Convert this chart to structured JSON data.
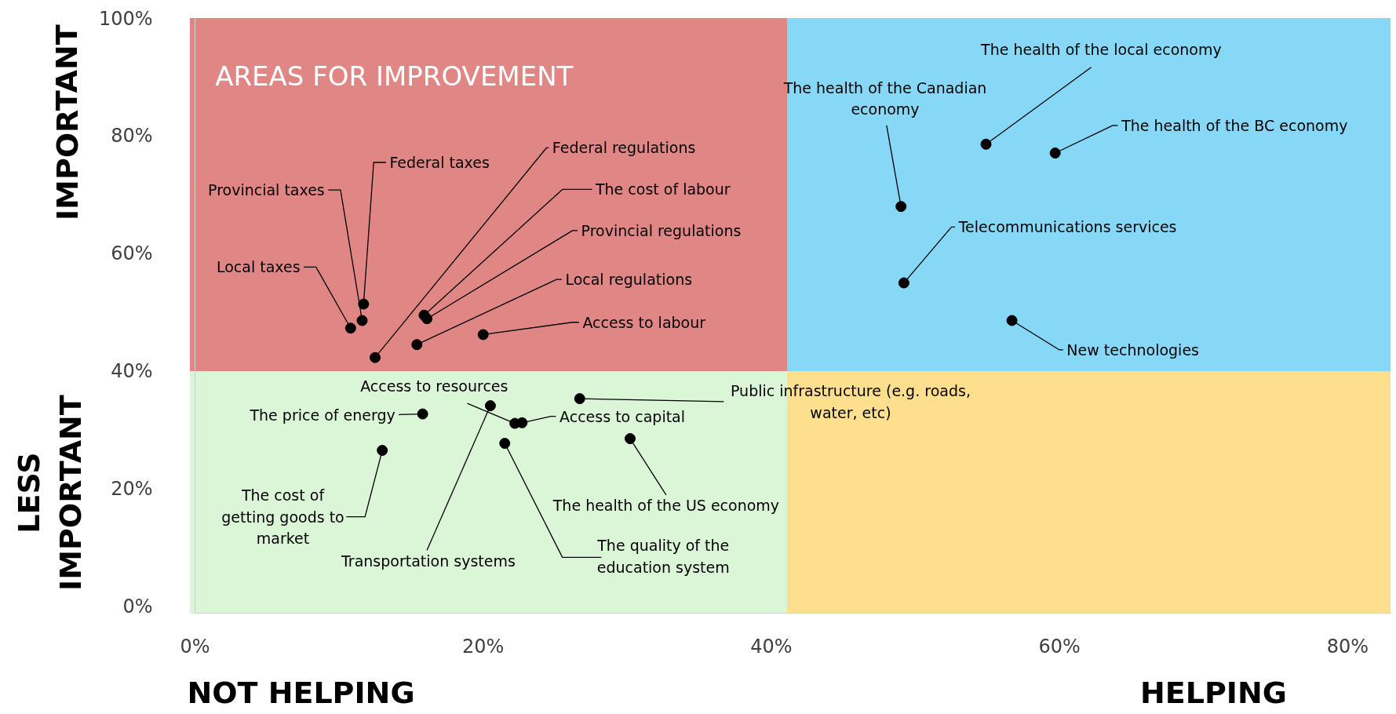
{
  "chart_data": {
    "type": "scatter",
    "marker": "circle",
    "grid": false,
    "xlim": [
      0,
      83
    ],
    "ylim": [
      -1.2,
      100
    ],
    "xticks": [
      {
        "value": 0,
        "label": "0%"
      },
      {
        "value": 20,
        "label": "20%"
      },
      {
        "value": 40,
        "label": "40%"
      },
      {
        "value": 60,
        "label": "60%"
      },
      {
        "value": 80,
        "label": "80%"
      }
    ],
    "yticks": [
      {
        "value": 0,
        "label": "0%"
      },
      {
        "value": 20,
        "label": "20%"
      },
      {
        "value": 40,
        "label": "40%"
      },
      {
        "value": 60,
        "label": "60%"
      },
      {
        "value": 80,
        "label": "80%"
      },
      {
        "value": 100,
        "label": "100%"
      }
    ],
    "series": [
      {
        "color": "#000000",
        "x": [
          10.8,
          11.6,
          11.7,
          12.5,
          15.9,
          16.1,
          15.4,
          20.0,
          49.0,
          54.9,
          59.7,
          49.2,
          56.7,
          22.2,
          15.8,
          22.7,
          26.7,
          13.0,
          20.5,
          21.5,
          30.2
        ],
        "values": [
          47.3,
          48.6,
          51.4,
          42.3,
          49.5,
          48.9,
          44.5,
          46.2,
          68.0,
          78.6,
          77.1,
          55.0,
          48.6,
          31.1,
          32.7,
          31.2,
          35.3,
          26.5,
          34.1,
          27.7,
          28.5
        ]
      }
    ],
    "annotations": [
      "AREAS FOR IMPROVEMENT",
      "IMPORTANT",
      "LESS IMPORTANT",
      "NOT HELPING",
      "HELPING",
      {
        "text": "Local taxes",
        "x": 10.8,
        "y": 47.3
      },
      {
        "text": "Provincial taxes",
        "x": 11.6,
        "y": 48.6
      },
      {
        "text": "Federal taxes",
        "x": 11.7,
        "y": 51.4
      },
      {
        "text": "Federal regulations",
        "x": 12.5,
        "y": 42.3
      },
      {
        "text": "The cost of labour",
        "x": 15.9,
        "y": 49.5
      },
      {
        "text": "Provincial regulations",
        "x": 16.1,
        "y": 48.9
      },
      {
        "text": "Local regulations",
        "x": 15.4,
        "y": 44.5
      },
      {
        "text": "Access to labour",
        "x": 20.0,
        "y": 46.2
      },
      {
        "text": "The health of the Canadian economy",
        "x": 49.0,
        "y": 68.0
      },
      {
        "text": "The health of the local economy",
        "x": 54.9,
        "y": 78.6
      },
      {
        "text": "The health of the BC economy",
        "x": 59.7,
        "y": 77.1
      },
      {
        "text": "Telecommunications services",
        "x": 49.2,
        "y": 55.0
      },
      {
        "text": "New technologies",
        "x": 56.7,
        "y": 48.6
      },
      {
        "text": "Access to resources",
        "x": 22.2,
        "y": 31.1
      },
      {
        "text": "The price of energy",
        "x": 15.8,
        "y": 32.7
      },
      {
        "text": "Access to capital",
        "x": 22.7,
        "y": 31.2
      },
      {
        "text": "Public infrastructure (e.g. roads, water, etc)",
        "x": 26.7,
        "y": 35.3
      },
      {
        "text": "The cost of getting goods to market",
        "x": 13.0,
        "y": 26.5
      },
      {
        "text": "Transportation systems",
        "x": 20.5,
        "y": 34.1
      },
      {
        "text": "The quality of the education system",
        "x": 21.5,
        "y": 27.7
      },
      {
        "text": "The health of the US economy",
        "x": 30.2,
        "y": 28.5
      }
    ]
  }
}
